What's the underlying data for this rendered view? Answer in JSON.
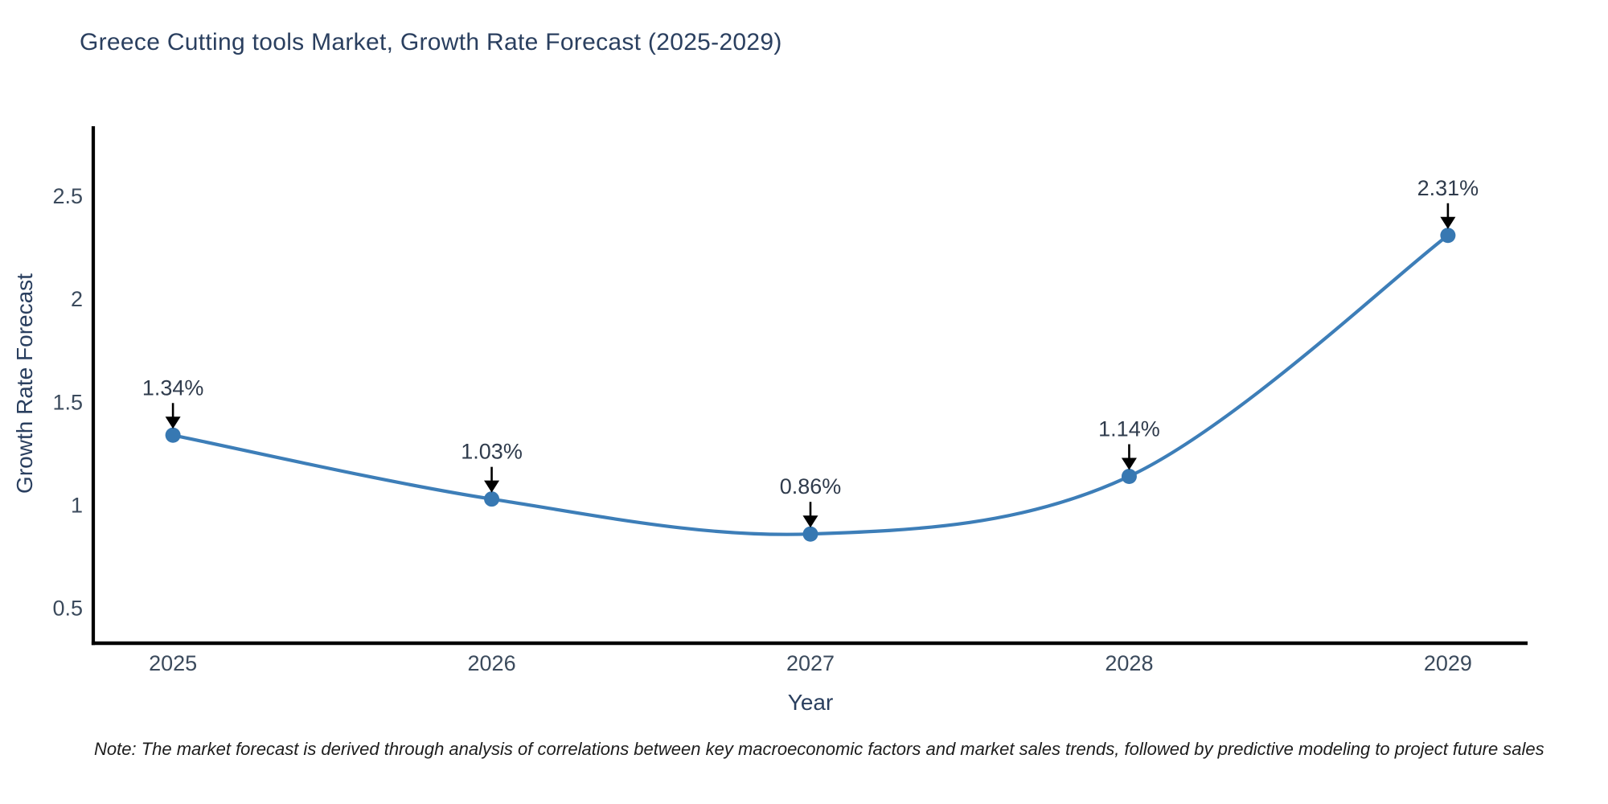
{
  "page": {
    "note": "Note: The market forecast is derived through analysis of correlations between key macroeconomic factors and market sales trends, followed by predictive modeling to project future sales"
  },
  "chart_data": {
    "type": "line",
    "title": "Greece Cutting tools Market, Growth Rate Forecast (2025-2029)",
    "xlabel": "Year",
    "ylabel": "Growth Rate Forecast",
    "categories": [
      2025,
      2026,
      2027,
      2028,
      2029
    ],
    "values": [
      1.34,
      1.03,
      0.86,
      1.14,
      2.31
    ],
    "point_labels": [
      "1.34%",
      "1.03%",
      "0.86%",
      "1.14%",
      "2.31%"
    ],
    "xtick_labels": [
      "2025",
      "2026",
      "2027",
      "2028",
      "2029"
    ],
    "ytick_values": [
      0.5,
      1,
      1.5,
      2,
      2.5
    ],
    "ytick_labels": [
      "0.5",
      "1",
      "1.5",
      "2",
      "2.5"
    ],
    "xlim": [
      2024.75,
      2029.25
    ],
    "ylim": [
      0.33,
      2.84
    ],
    "line_shape": "spline",
    "grid": false,
    "legend": "none",
    "colors": {
      "line": "#3d7eb8",
      "marker": "#3778b2",
      "axis": "#000000",
      "title_text": "#2a3f5f",
      "axis_title_text": "#2a3f5f",
      "tick_text": "#3b4a5c",
      "annotation_text": "#2f3b4c",
      "arrow": "#000000",
      "background": "#ffffff"
    }
  }
}
